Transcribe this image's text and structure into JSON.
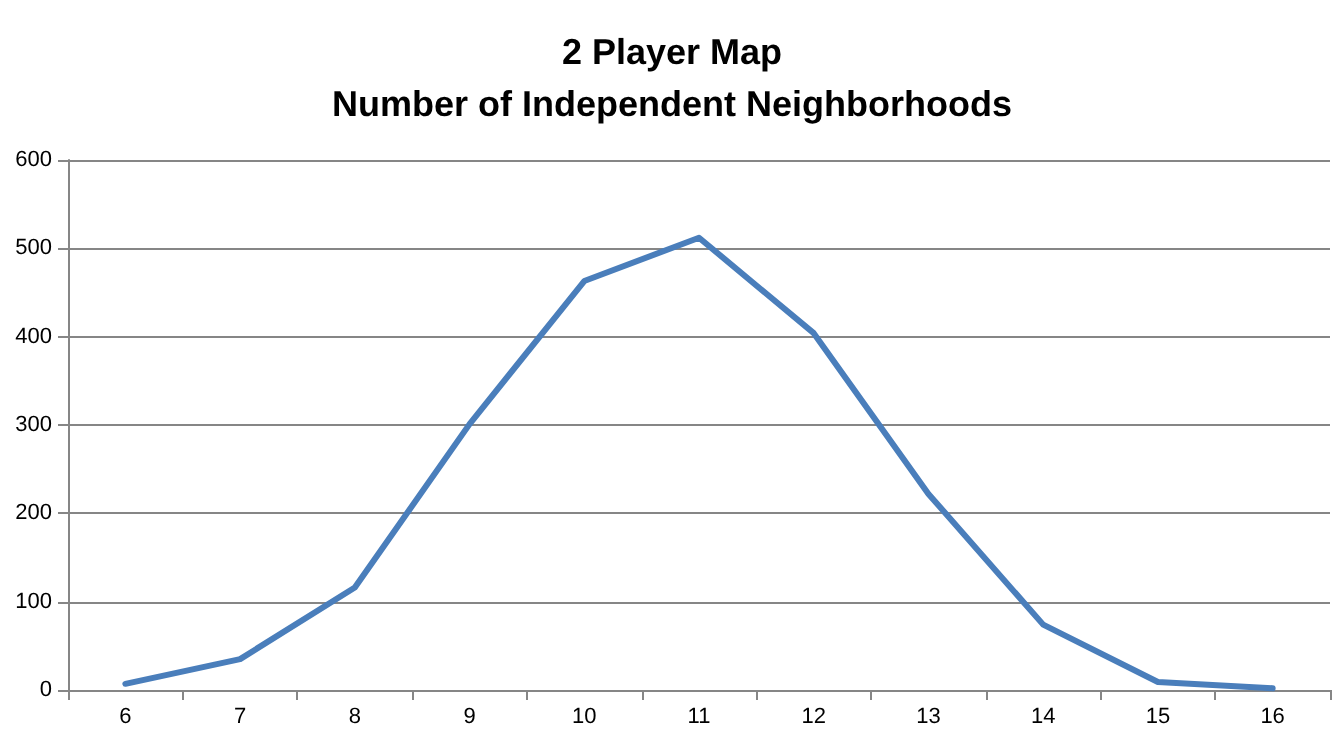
{
  "chart_data": {
    "type": "line",
    "title": "2 Player Map\nNumber of Independent Neighborhoods",
    "categories": [
      "6",
      "7",
      "8",
      "9",
      "10",
      "11",
      "12",
      "13",
      "14",
      "15",
      "16"
    ],
    "series": [
      {
        "color": "#4a7ebb",
        "values": [
          7,
          35,
          116,
          301,
          463,
          512,
          404,
          222,
          74,
          9,
          2
        ]
      }
    ],
    "ylim": [
      0,
      600
    ],
    "yticks": [
      0,
      100,
      200,
      300,
      400,
      500,
      600
    ],
    "grid": "y",
    "marker": "none",
    "line_style": "solid"
  }
}
